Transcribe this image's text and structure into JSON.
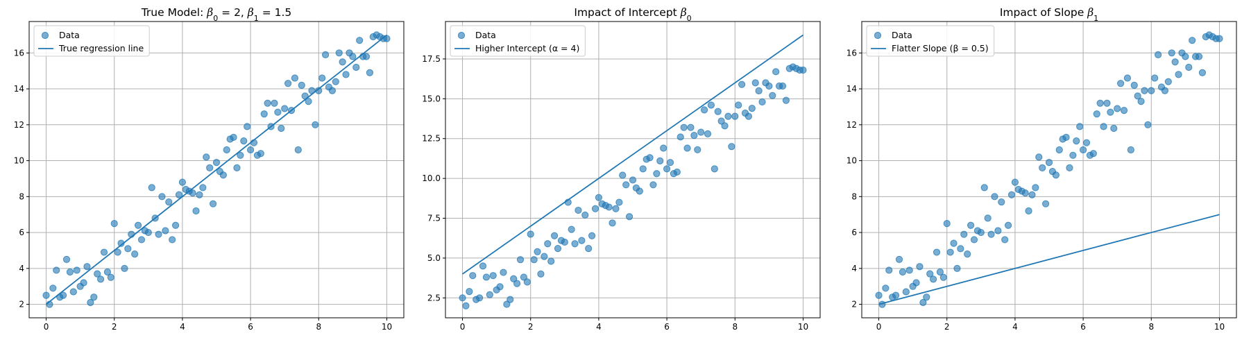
{
  "figure": {
    "background": "#ffffff"
  },
  "colors": {
    "points": "#1f77b4",
    "line": "#1f77b4",
    "grid": "#b0b0b0"
  },
  "chart_data": [
    {
      "type": "scatter",
      "title_parts": [
        {
          "text": "True Model: ",
          "style": "normal"
        },
        {
          "text": "β",
          "style": "italic"
        },
        {
          "text": "0",
          "style": "sub"
        },
        {
          "text": " = 2, ",
          "style": "normal"
        },
        {
          "text": "β",
          "style": "italic"
        },
        {
          "text": "1",
          "style": "sub"
        },
        {
          "text": " = 1.5",
          "style": "normal"
        }
      ],
      "xlim": [
        -0.5,
        10.5
      ],
      "ylim": [
        1.25,
        17.75
      ],
      "xticks": [
        0,
        2,
        4,
        6,
        8,
        10
      ],
      "xtick_labels": [
        "0",
        "2",
        "4",
        "6",
        "8",
        "10"
      ],
      "yticks": [
        2,
        4,
        6,
        8,
        10,
        12,
        14,
        16
      ],
      "ytick_labels": [
        "2",
        "4",
        "6",
        "8",
        "10",
        "12",
        "14",
        "16"
      ],
      "grid": true,
      "legend": {
        "placement": "upper-left",
        "entries": [
          {
            "label": "Data",
            "kind": "marker"
          },
          {
            "label": "True regression line",
            "kind": "line"
          }
        ]
      },
      "line": {
        "x": [
          0,
          10
        ],
        "y": [
          2,
          17
        ]
      },
      "points_key": "shared"
    },
    {
      "type": "scatter",
      "title_parts": [
        {
          "text": "Impact of Intercept ",
          "style": "normal"
        },
        {
          "text": "β",
          "style": "italic"
        },
        {
          "text": "0",
          "style": "sub"
        }
      ],
      "xlim": [
        -0.5,
        10.5
      ],
      "ylim": [
        1.25,
        19.85
      ],
      "xticks": [
        0,
        2,
        4,
        6,
        8,
        10
      ],
      "xtick_labels": [
        "0",
        "2",
        "4",
        "6",
        "8",
        "10"
      ],
      "yticks": [
        2.5,
        5.0,
        7.5,
        10.0,
        12.5,
        15.0,
        17.5
      ],
      "ytick_labels": [
        "2.5",
        "5.0",
        "7.5",
        "10.0",
        "12.5",
        "15.0",
        "17.5"
      ],
      "grid": true,
      "legend": {
        "placement": "upper-left",
        "entries": [
          {
            "label": "Data",
            "kind": "marker"
          },
          {
            "label": "Higher Intercept (α = 4)",
            "kind": "line"
          }
        ]
      },
      "line": {
        "x": [
          0,
          10
        ],
        "y": [
          4,
          19
        ]
      },
      "points_key": "shared"
    },
    {
      "type": "scatter",
      "title_parts": [
        {
          "text": "Impact of Slope ",
          "style": "normal"
        },
        {
          "text": "β",
          "style": "italic"
        },
        {
          "text": "1",
          "style": "sub"
        }
      ],
      "xlim": [
        -0.5,
        10.5
      ],
      "ylim": [
        1.25,
        17.75
      ],
      "xticks": [
        0,
        2,
        4,
        6,
        8,
        10
      ],
      "xtick_labels": [
        "0",
        "2",
        "4",
        "6",
        "8",
        "10"
      ],
      "yticks": [
        2,
        4,
        6,
        8,
        10,
        12,
        14,
        16
      ],
      "ytick_labels": [
        "2",
        "4",
        "6",
        "8",
        "10",
        "12",
        "14",
        "16"
      ],
      "grid": true,
      "legend": {
        "placement": "upper-left",
        "entries": [
          {
            "label": "Data",
            "kind": "marker"
          },
          {
            "label": "Flatter Slope (β = 0.5)",
            "kind": "line"
          }
        ]
      },
      "line": {
        "x": [
          0,
          10
        ],
        "y": [
          2,
          7
        ]
      },
      "points_key": "shared"
    }
  ],
  "shared_points": {
    "name": "Data",
    "x": [
      0.0,
      0.1,
      0.2,
      0.3,
      0.4,
      0.5,
      0.6,
      0.7,
      0.8,
      0.9,
      1.0,
      1.1,
      1.2,
      1.3,
      1.4,
      1.5,
      1.6,
      1.7,
      1.8,
      1.9,
      2.0,
      2.1,
      2.2,
      2.3,
      2.4,
      2.5,
      2.6,
      2.7,
      2.8,
      2.9,
      3.0,
      3.1,
      3.2,
      3.3,
      3.4,
      3.5,
      3.6,
      3.7,
      3.8,
      3.9,
      4.0,
      4.1,
      4.2,
      4.3,
      4.4,
      4.5,
      4.6,
      4.7,
      4.8,
      4.9,
      5.0,
      5.1,
      5.2,
      5.3,
      5.4,
      5.5,
      5.6,
      5.7,
      5.8,
      5.9,
      6.0,
      6.1,
      6.2,
      6.3,
      6.4,
      6.5,
      6.6,
      6.7,
      6.8,
      6.9,
      7.0,
      7.1,
      7.2,
      7.3,
      7.4,
      7.5,
      7.6,
      7.7,
      7.8,
      7.9,
      8.0,
      8.1,
      8.2,
      8.3,
      8.4,
      8.5,
      8.6,
      8.7,
      8.8,
      8.9,
      9.0,
      9.1,
      9.2,
      9.3,
      9.4,
      9.5,
      9.6,
      9.7,
      9.8,
      9.9,
      10.0
    ],
    "y": [
      2.5,
      2.0,
      2.9,
      3.9,
      2.4,
      2.5,
      4.5,
      3.8,
      2.7,
      3.9,
      3.0,
      3.2,
      4.1,
      2.1,
      2.4,
      3.7,
      3.4,
      4.9,
      3.8,
      3.5,
      6.5,
      4.9,
      5.4,
      4.0,
      5.1,
      5.9,
      4.8,
      6.4,
      5.6,
      6.1,
      6.0,
      8.5,
      6.8,
      5.9,
      8.0,
      6.1,
      7.7,
      5.6,
      6.4,
      8.1,
      8.8,
      8.4,
      8.3,
      8.2,
      7.2,
      8.1,
      8.5,
      10.2,
      9.6,
      7.6,
      9.9,
      9.4,
      9.2,
      10.6,
      11.2,
      11.3,
      9.6,
      10.3,
      11.1,
      11.9,
      10.6,
      11.0,
      10.3,
      10.4,
      12.6,
      13.2,
      11.9,
      13.2,
      12.7,
      11.8,
      12.9,
      14.3,
      12.8,
      14.6,
      10.6,
      14.2,
      13.6,
      13.3,
      13.9,
      12.0,
      13.9,
      14.6,
      15.9,
      14.1,
      13.9,
      14.4,
      16.0,
      15.5,
      14.8,
      16.0,
      15.8,
      15.2,
      16.7,
      15.8,
      15.8,
      14.9,
      16.9,
      17.0,
      16.9,
      16.8,
      16.8
    ]
  }
}
